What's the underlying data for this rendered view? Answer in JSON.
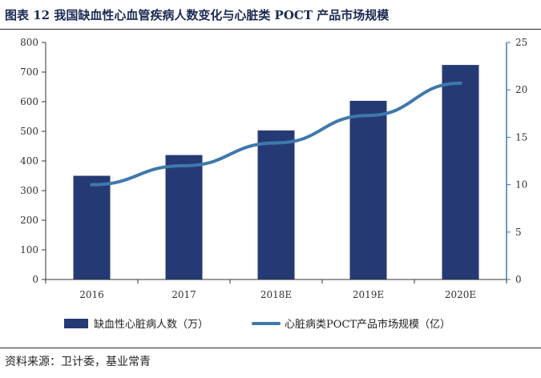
{
  "title": "图表 12 我国缺血性心血管疾病人数变化与心脏类 POCT 产品市场规模",
  "source": "资料来源：卫计委，基业常青",
  "colors": {
    "bar": "#253a74",
    "line": "#3f78ad",
    "axis": "#333333",
    "rightAxis": "#3f78ad",
    "title": "#1a2a52"
  },
  "chart_data": {
    "type": "bar",
    "categories": [
      "2016",
      "2017",
      "2018E",
      "2019E",
      "2020E"
    ],
    "series": [
      {
        "name": "缺血性心脏病人数（万）",
        "type": "bar",
        "axis": "left",
        "values": [
          350,
          420,
          503,
          603,
          724
        ]
      },
      {
        "name": "心脏病类POCT产品市场规模（亿）",
        "type": "line",
        "axis": "right",
        "values": [
          10.0,
          12.0,
          14.4,
          17.3,
          20.7
        ]
      }
    ],
    "y_left": {
      "lim": [
        0,
        800
      ],
      "ticks": [
        0,
        100,
        200,
        300,
        400,
        500,
        600,
        700,
        800
      ]
    },
    "y_right": {
      "lim": [
        0,
        25
      ],
      "ticks": [
        0,
        5,
        10,
        15,
        20,
        25
      ]
    },
    "grid": false,
    "legend": "bottom"
  }
}
